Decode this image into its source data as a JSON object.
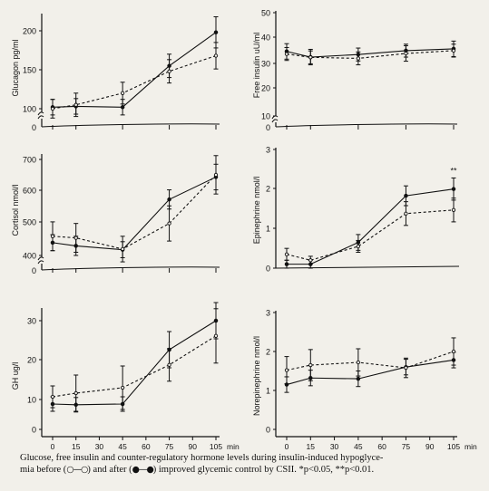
{
  "chart_data": [
    {
      "type": "line",
      "ylabel": "Glucagon pg/ml",
      "ytick_labels": [
        "100",
        "150",
        "200"
      ],
      "ybreak_label": "0",
      "ylim": [
        80,
        220
      ],
      "x": [
        0,
        15,
        45,
        75,
        105
      ],
      "series": [
        {
          "values": [
            102,
            103,
            102,
            155,
            198
          ],
          "errors": [
            10,
            10,
            10,
            15,
            20
          ]
        },
        {
          "values": [
            100,
            105,
            120,
            148,
            168
          ],
          "errors": [
            12,
            15,
            14,
            15,
            17
          ]
        }
      ]
    },
    {
      "type": "line",
      "ylabel": "Free insulin uU/ml",
      "ytick_labels": [
        "10",
        "20",
        "30",
        "40",
        "50"
      ],
      "ybreak_label": "0",
      "ylim": [
        5,
        52
      ],
      "x": [
        0,
        15,
        45,
        75,
        105
      ],
      "series": [
        {
          "values": [
            35,
            32.8,
            33.8,
            35.3,
            36
          ],
          "errors": [
            3,
            3,
            2.5,
            2.5,
            3
          ]
        },
        {
          "values": [
            34,
            32.7,
            32.3,
            34.2,
            35.3
          ],
          "errors": [
            2.5,
            2.5,
            2.5,
            3,
            2.5
          ]
        }
      ]
    },
    {
      "type": "line",
      "ylabel": "Cortisol nmol/l",
      "ytick_labels": [
        "400",
        "500",
        "600",
        "700"
      ],
      "ybreak_label": "0",
      "ylim": [
        360,
        720
      ],
      "x": [
        0,
        15,
        45,
        75,
        105
      ],
      "series": [
        {
          "values": [
            440,
            430,
            418,
            575,
            645
          ],
          "errors": [
            25,
            30,
            25,
            30,
            40
          ]
        },
        {
          "values": [
            460,
            455,
            420,
            500,
            652
          ],
          "errors": [
            45,
            45,
            40,
            55,
            60
          ]
        }
      ]
    },
    {
      "type": "line",
      "ylabel": "Epinephrine nmol/l",
      "ytick_labels": [
        "0",
        "1",
        "2",
        "3"
      ],
      "ylim": [
        0,
        3
      ],
      "annotations": [
        "**"
      ],
      "x": [
        0,
        15,
        45,
        75,
        105
      ],
      "series": [
        {
          "values": [
            0.1,
            0.1,
            0.65,
            1.83,
            2.0
          ],
          "errors": [
            0.1,
            0.1,
            0.2,
            0.25,
            0.28
          ]
        },
        {
          "values": [
            0.35,
            0.2,
            0.55,
            1.38,
            1.47
          ],
          "errors": [
            0.15,
            0.1,
            0.15,
            0.3,
            0.3
          ]
        }
      ]
    },
    {
      "type": "line",
      "ylabel": "GH ug/l",
      "ytick_labels": [
        "0",
        "10",
        "20",
        "30"
      ],
      "ylim": [
        0,
        35
      ],
      "xlabel": "min",
      "xtick_labels": [
        "0",
        "15",
        "30",
        "45",
        "60",
        "75",
        "90",
        "105"
      ],
      "x": [
        0,
        15,
        45,
        75,
        105
      ],
      "series": [
        {
          "values": [
            7,
            6.8,
            7,
            22,
            30
          ],
          "errors": [
            2,
            2,
            2,
            5,
            5
          ]
        },
        {
          "values": [
            9,
            10,
            11.5,
            17.8,
            25.8
          ],
          "errors": [
            3,
            5,
            6,
            4.5,
            7.5
          ]
        }
      ]
    },
    {
      "type": "line",
      "ylabel": "Norepinephrine nmol/l",
      "ytick_labels": [
        "0",
        "1",
        "2",
        "3"
      ],
      "ylim": [
        0,
        3
      ],
      "xlabel": "min",
      "xtick_labels": [
        "0",
        "15",
        "30",
        "45",
        "60",
        "75",
        "90",
        "105"
      ],
      "x": [
        0,
        15,
        45,
        75,
        105
      ],
      "series": [
        {
          "values": [
            1.15,
            1.32,
            1.3,
            1.6,
            1.78
          ],
          "errors": [
            0.2,
            0.2,
            0.2,
            0.2,
            0.2
          ]
        },
        {
          "values": [
            1.52,
            1.65,
            1.72,
            1.58,
            2.0
          ],
          "errors": [
            0.35,
            0.4,
            0.35,
            0.25,
            0.35
          ]
        }
      ]
    }
  ],
  "caption": {
    "part1": "Glucose, free insulin and counter-regulatory hormone levels during insulin-induced hypoglyce-",
    "part2": "mia before (",
    "sym_open": "○—○",
    "part3": ") and after (",
    "sym_filled": "●—●",
    "part4": ") improved glycemic control by CSII. *p<0.05, **p<0.01."
  }
}
